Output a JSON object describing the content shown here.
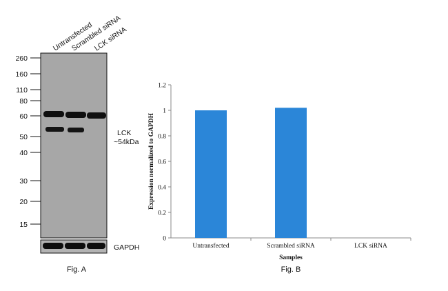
{
  "figure_a": {
    "caption": "Fig. A",
    "lanes": [
      "Untransfected",
      "Scrambled siRNA",
      "LCK siRNA"
    ],
    "mw_markers": [
      "260",
      "160",
      "110",
      "80",
      "60",
      "50",
      "40",
      "30",
      "20",
      "15"
    ],
    "target_label": "LCK",
    "target_size": "~54kDa",
    "control_label": "GAPDH"
  },
  "chart_data": {
    "type": "bar",
    "title": "",
    "caption": "Fig. B",
    "categories": [
      "Untransfected",
      "Scrambled siRNA",
      "LCK siRNA"
    ],
    "values": [
      1.0,
      1.02,
      0.0
    ],
    "xlabel": "Samples",
    "ylabel": "Expression normalized to GAPDH",
    "ylim": [
      0,
      1.2
    ],
    "yticks": [
      "0",
      "0.2",
      "0.4",
      "0.6",
      "0.8",
      "1",
      "1.2"
    ],
    "grid": false,
    "bar_color": "#2b86d8"
  }
}
